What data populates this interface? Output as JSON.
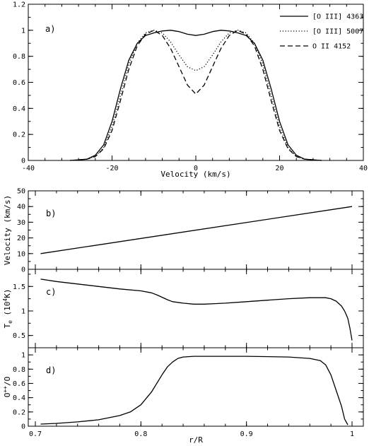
{
  "chart_data": [
    {
      "panel_label": "a)",
      "type": "line",
      "xlabel": "Velocity (km/s)",
      "ylabel": "",
      "xlim": [
        -40,
        40
      ],
      "ylim": [
        0,
        1.2
      ],
      "xticks": [
        "-40",
        "-20",
        "0",
        "20",
        "40"
      ],
      "yticks": [
        "0",
        "0.2",
        "0.4",
        "0.6",
        "0.8",
        "1",
        "1.2"
      ],
      "legend_position": "top-right",
      "series": [
        {
          "name": "[O III] 4363",
          "style": "solid",
          "x": [
            -30,
            -26,
            -24,
            -22,
            -20,
            -18,
            -16,
            -14,
            -12,
            -10,
            -8,
            -6,
            -4,
            -2,
            0,
            2,
            4,
            6,
            8,
            10,
            12,
            14,
            16,
            18,
            20,
            22,
            24,
            26,
            30
          ],
          "y": [
            0.0,
            0.01,
            0.04,
            0.12,
            0.3,
            0.55,
            0.77,
            0.9,
            0.96,
            0.98,
            0.995,
            1.0,
            0.99,
            0.97,
            0.96,
            0.97,
            0.99,
            1.0,
            0.995,
            0.98,
            0.96,
            0.9,
            0.77,
            0.55,
            0.3,
            0.12,
            0.04,
            0.01,
            0.0
          ]
        },
        {
          "name": "[O III] 5007",
          "style": "dotted",
          "x": [
            -30,
            -26,
            -24,
            -22,
            -20,
            -18,
            -16,
            -14,
            -12,
            -10,
            -8,
            -6,
            -4,
            -2,
            0,
            2,
            4,
            6,
            8,
            10,
            12,
            14,
            16,
            18,
            20,
            22,
            24,
            26,
            30
          ],
          "y": [
            0.0,
            0.01,
            0.03,
            0.1,
            0.26,
            0.5,
            0.74,
            0.9,
            0.98,
            1.0,
            0.98,
            0.91,
            0.81,
            0.72,
            0.69,
            0.72,
            0.81,
            0.91,
            0.98,
            1.0,
            0.98,
            0.9,
            0.74,
            0.5,
            0.26,
            0.1,
            0.03,
            0.01,
            0.0
          ]
        },
        {
          "name": "O II 4152",
          "style": "dashed",
          "x": [
            -30,
            -26,
            -24,
            -22,
            -20,
            -18,
            -16,
            -14,
            -12,
            -10,
            -8,
            -6,
            -4,
            -2,
            0,
            2,
            4,
            6,
            8,
            10,
            12,
            14,
            16,
            18,
            20,
            22,
            24,
            26,
            30
          ],
          "y": [
            0.0,
            0.01,
            0.03,
            0.09,
            0.23,
            0.46,
            0.7,
            0.88,
            0.97,
            1.0,
            0.96,
            0.86,
            0.72,
            0.58,
            0.51,
            0.58,
            0.72,
            0.86,
            0.96,
            1.0,
            0.97,
            0.88,
            0.7,
            0.46,
            0.23,
            0.09,
            0.03,
            0.01,
            0.0
          ]
        }
      ]
    },
    {
      "panel_label": "b)",
      "type": "line",
      "xlabel": "",
      "ylabel": "Velocity (km/s)",
      "xlim": [
        0.7,
        1.0
      ],
      "ylim": [
        0,
        50
      ],
      "yticks": [
        "0",
        "10",
        "20",
        "30",
        "40",
        "50"
      ],
      "series": [
        {
          "style": "solid",
          "x": [
            0.705,
            1.0
          ],
          "y": [
            10,
            40
          ]
        }
      ]
    },
    {
      "panel_label": "c)",
      "type": "line",
      "xlabel": "",
      "ylabel": "T",
      "ylabel_sub": "e",
      "ylabel_tail": " (10",
      "ylabel_sup": "4",
      "ylabel_end": "K)",
      "xlim": [
        0.7,
        1.0
      ],
      "ylim": [
        0.25,
        1.85
      ],
      "yticks": [
        "0.5",
        "1",
        "1.5"
      ],
      "series": [
        {
          "style": "solid",
          "x": [
            0.705,
            0.72,
            0.74,
            0.76,
            0.78,
            0.8,
            0.81,
            0.815,
            0.82,
            0.825,
            0.83,
            0.84,
            0.85,
            0.86,
            0.87,
            0.88,
            0.9,
            0.92,
            0.94,
            0.96,
            0.975,
            0.98,
            0.985,
            0.99,
            0.993,
            0.996,
            0.998,
            1.0
          ],
          "y": [
            1.65,
            1.6,
            1.55,
            1.5,
            1.45,
            1.41,
            1.37,
            1.33,
            1.28,
            1.23,
            1.19,
            1.16,
            1.14,
            1.14,
            1.15,
            1.16,
            1.19,
            1.22,
            1.25,
            1.27,
            1.27,
            1.25,
            1.2,
            1.1,
            1.0,
            0.85,
            0.65,
            0.4
          ]
        }
      ]
    },
    {
      "panel_label": "d)",
      "type": "line",
      "xlabel": "r/R",
      "ylabel": "O",
      "ylabel_sup": "++",
      "ylabel_tail": "/O",
      "xlim": [
        0.7,
        1.0
      ],
      "ylim": [
        0,
        1.1
      ],
      "xticks": [
        "0.7",
        "0.8",
        "0.9",
        "1"
      ],
      "yticks": [
        "0",
        "0.2",
        "0.4",
        "0.6",
        "0.8",
        "1"
      ],
      "series": [
        {
          "style": "solid",
          "x": [
            0.705,
            0.72,
            0.74,
            0.76,
            0.78,
            0.79,
            0.8,
            0.81,
            0.82,
            0.825,
            0.83,
            0.835,
            0.84,
            0.85,
            0.86,
            0.9,
            0.94,
            0.96,
            0.97,
            0.975,
            0.98,
            0.985,
            0.99,
            0.993,
            0.996
          ],
          "y": [
            0.03,
            0.04,
            0.06,
            0.09,
            0.15,
            0.2,
            0.3,
            0.48,
            0.72,
            0.83,
            0.9,
            0.95,
            0.97,
            0.98,
            0.98,
            0.98,
            0.97,
            0.95,
            0.92,
            0.86,
            0.72,
            0.5,
            0.28,
            0.1,
            0.02
          ]
        }
      ]
    }
  ]
}
